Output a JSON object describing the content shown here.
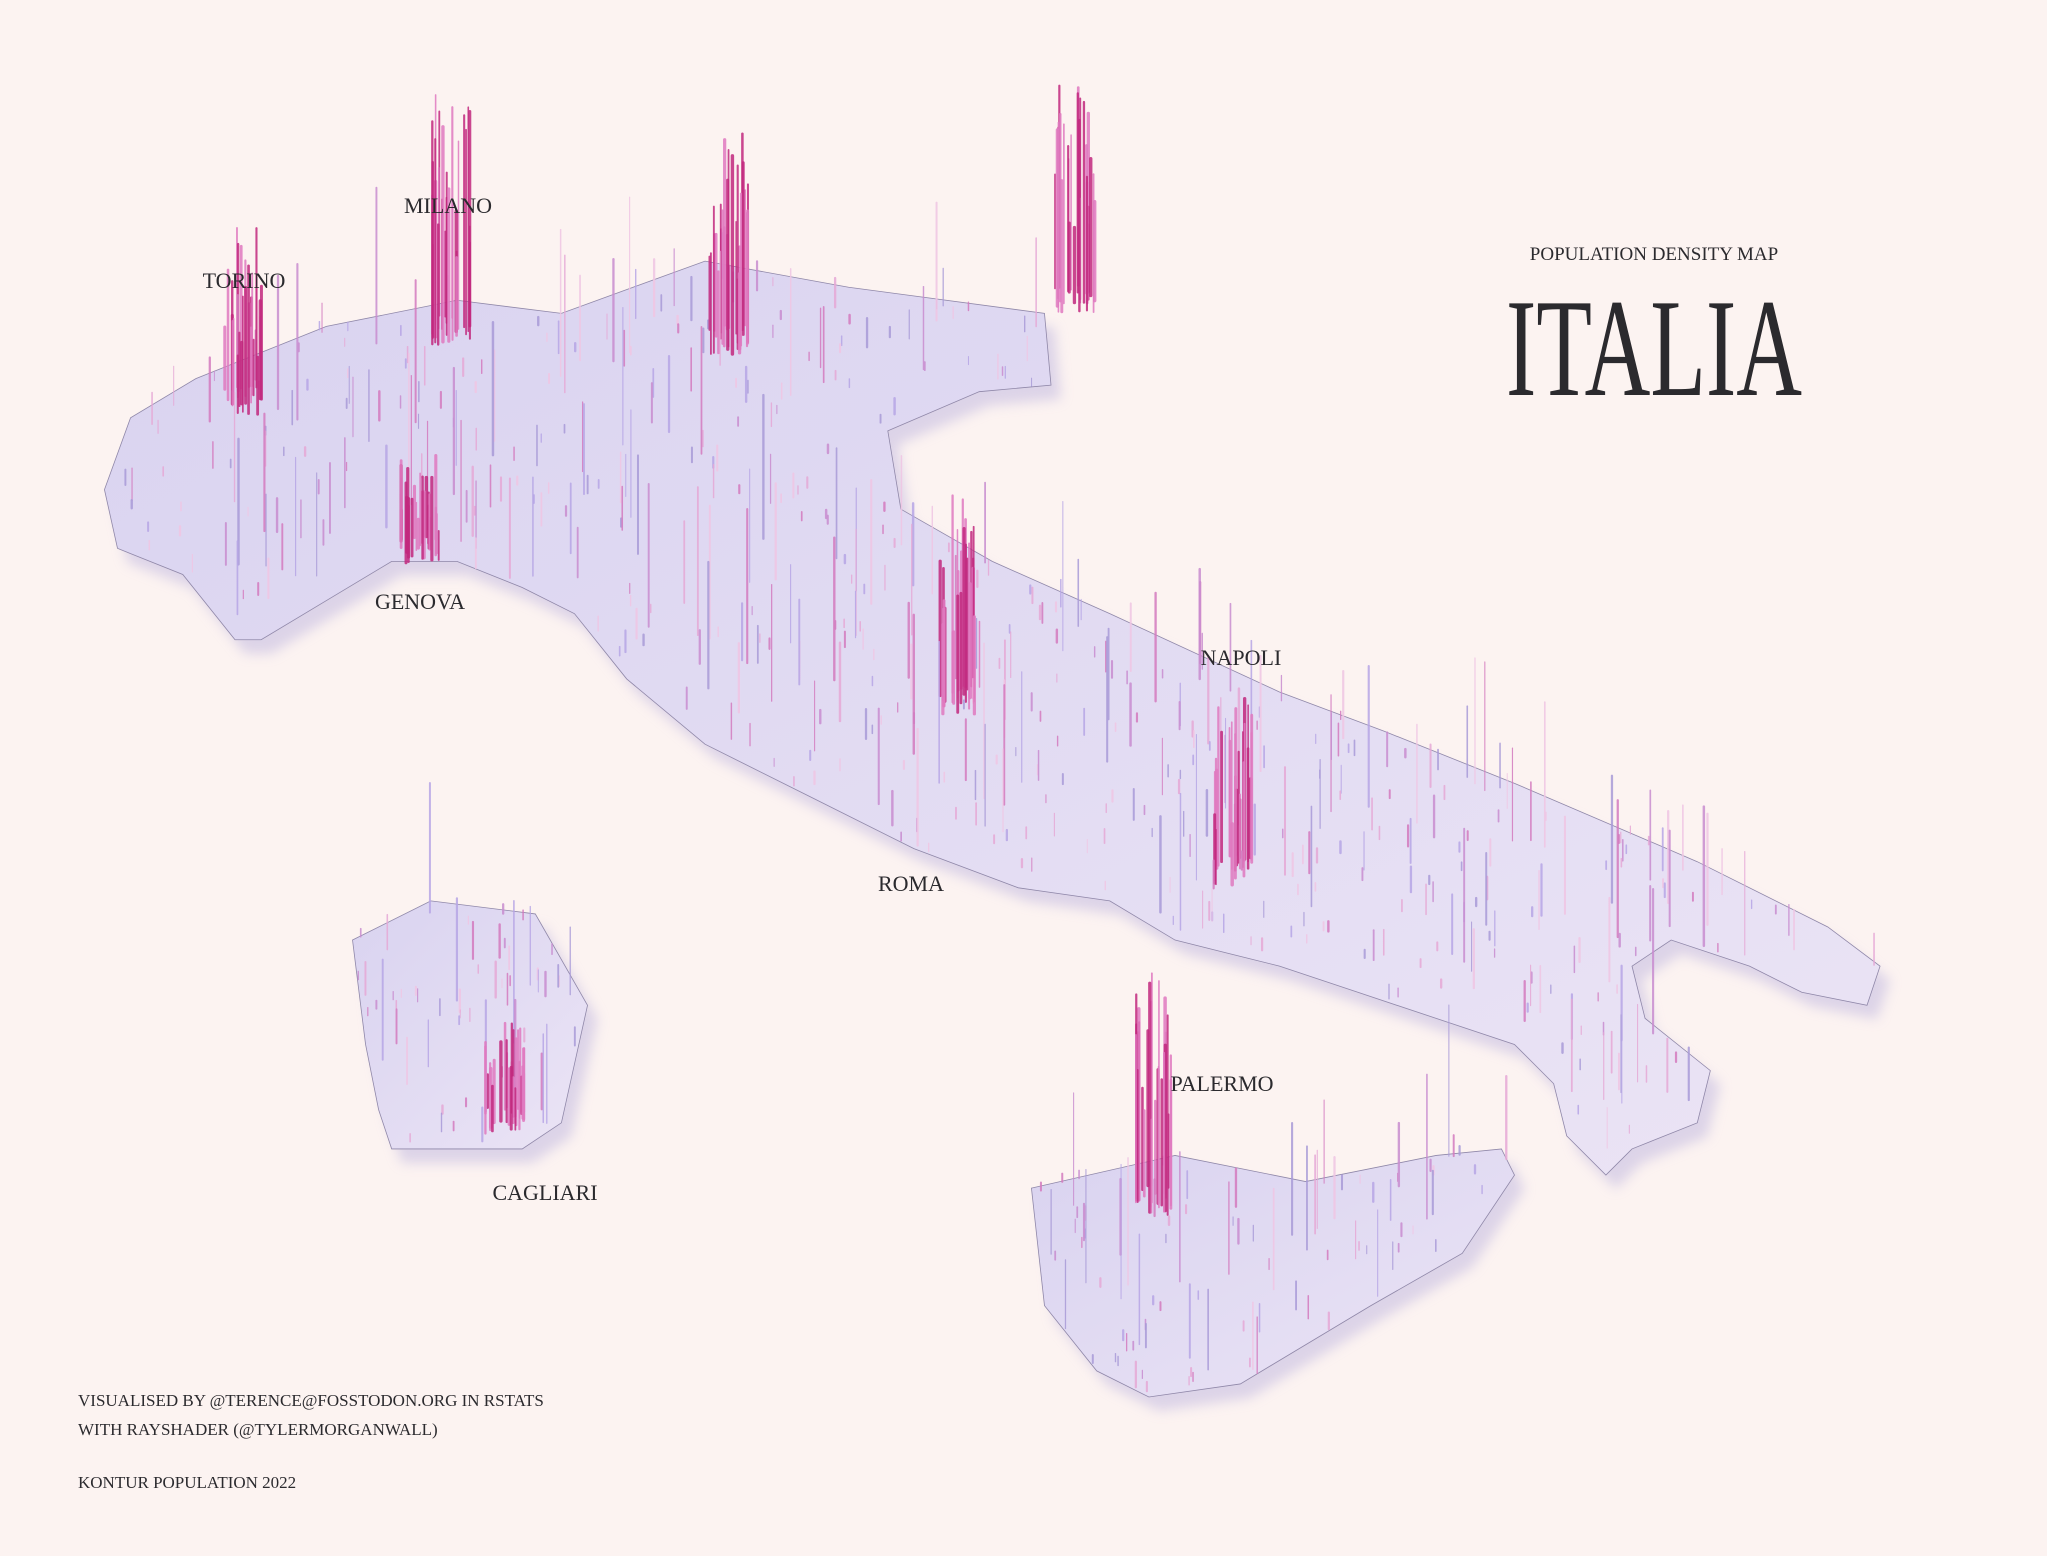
{
  "header": {
    "subtitle": "POPULATION DENSITY MAP",
    "title": "ITALIA"
  },
  "labels": [
    "TORINO",
    "MILANO",
    "GENOVA",
    "NAPOLI",
    "ROMA",
    "PALERMO",
    "CAGLIARI"
  ],
  "credits": [
    "VISUALISED BY @TERENCE@FOSSTODON.ORG IN RSTATS",
    "WITH RAYSHADER (@TYLERMORGANWALL)",
    "KONTUR POPULATION 2022"
  ]
}
